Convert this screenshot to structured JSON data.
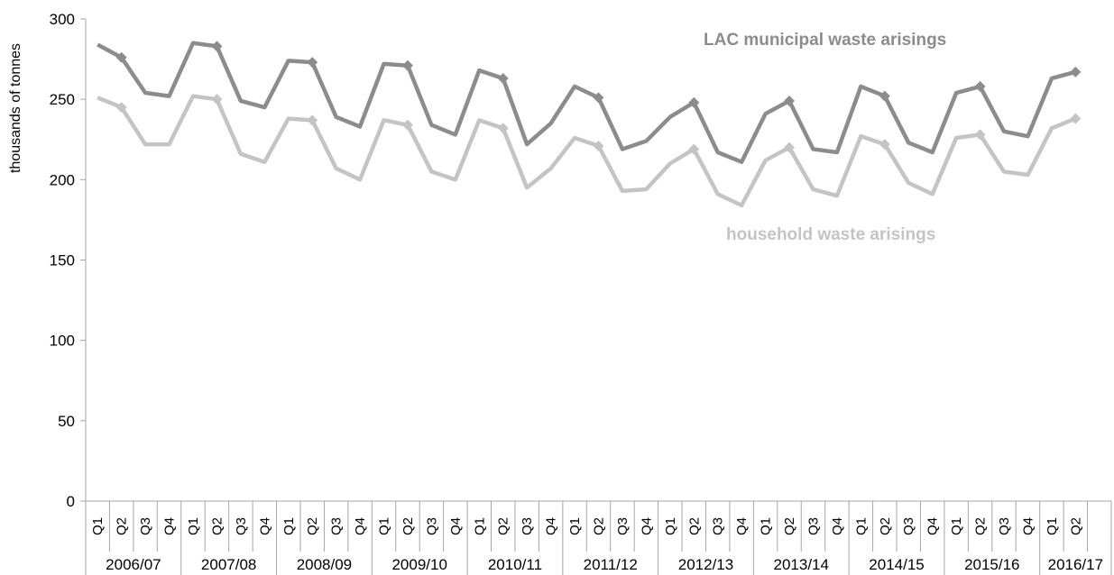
{
  "chart_data": {
    "type": "line",
    "ylabel": "thousands of tonnes",
    "ylim": [
      0,
      300
    ],
    "yticks": [
      0,
      50,
      100,
      150,
      200,
      250,
      300
    ],
    "quarters": [
      "Q1",
      "Q2",
      "Q3",
      "Q4",
      "Q1",
      "Q2",
      "Q3",
      "Q4",
      "Q1",
      "Q2",
      "Q3",
      "Q4",
      "Q1",
      "Q2",
      "Q3",
      "Q4",
      "Q1",
      "Q2",
      "Q3",
      "Q4",
      "Q1",
      "Q2",
      "Q3",
      "Q4",
      "Q1",
      "Q2",
      "Q3",
      "Q4",
      "Q1",
      "Q2",
      "Q3",
      "Q4",
      "Q1",
      "Q2",
      "Q3",
      "Q4",
      "Q1",
      "Q2",
      "Q3",
      "Q4",
      "Q1",
      "Q2"
    ],
    "years": [
      "2006/07",
      "2007/08",
      "2008/09",
      "2009/10",
      "2010/11",
      "2011/12",
      "2012/13",
      "2013/14",
      "2014/15",
      "2015/16",
      "2016/17"
    ],
    "grid": false,
    "series": [
      {
        "name": "LAC municipal waste arisings",
        "color": "#8c8c8c",
        "values": [
          284,
          276,
          254,
          252,
          285,
          283,
          249,
          245,
          274,
          273,
          239,
          233,
          272,
          271,
          234,
          228,
          268,
          263,
          222,
          235,
          258,
          251,
          219,
          224,
          239,
          248,
          217,
          211,
          241,
          249,
          219,
          217,
          258,
          252,
          223,
          217,
          254,
          258,
          230,
          227,
          263,
          267
        ]
      },
      {
        "name": "household waste arisings",
        "color": "#c4c4c4",
        "values": [
          251,
          245,
          222,
          222,
          252,
          250,
          216,
          211,
          238,
          237,
          207,
          200,
          237,
          234,
          205,
          200,
          237,
          232,
          195,
          207,
          226,
          221,
          193,
          194,
          210,
          219,
          191,
          184,
          212,
          220,
          194,
          190,
          227,
          222,
          198,
          191,
          226,
          228,
          205,
          203,
          232,
          238
        ]
      }
    ]
  }
}
